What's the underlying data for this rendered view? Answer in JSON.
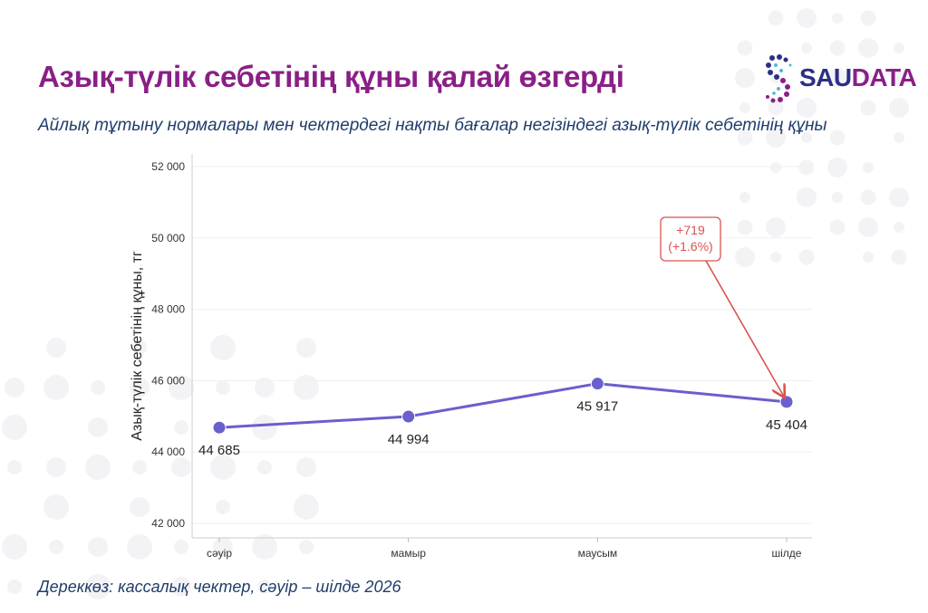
{
  "header": {
    "title": "Азық-түлік себетінің құны қалай өзгерді",
    "subtitle": "Айлық тұтыну нормалары мен чектердегі нақты бағалар негізіндегі азық-түлік себетінің құны"
  },
  "logo": {
    "part1": "SAU",
    "part2": "DATA"
  },
  "source": "Дереккөз: кассалық чектер, сәуір – шілде 2026",
  "colors": {
    "title": "#8a1f86",
    "subtitle": "#1f3d6b",
    "line": "#6a5fcc",
    "annotation": "#d9534f"
  },
  "chart_data": {
    "type": "line",
    "categories": [
      "сәуір",
      "мамыр",
      "маусым",
      "шілде"
    ],
    "series": [
      {
        "values": [
          44685,
          44994,
          45917,
          45404
        ]
      }
    ],
    "data_labels": [
      "44 685",
      "44 994",
      "45 917",
      "45 404"
    ],
    "ylabel": "Азық-түлік себетінің құны, тг",
    "ylim": [
      41600,
      52400
    ],
    "yticks": [
      42000,
      44000,
      46000,
      48000,
      50000,
      52000
    ],
    "ytick_labels": [
      "42 000",
      "44 000",
      "46 000",
      "48 000",
      "50 000",
      "52 000"
    ],
    "grid": true,
    "annotation": {
      "line1": "+719",
      "line2": "(+1.6%)",
      "target_index": 3
    }
  }
}
